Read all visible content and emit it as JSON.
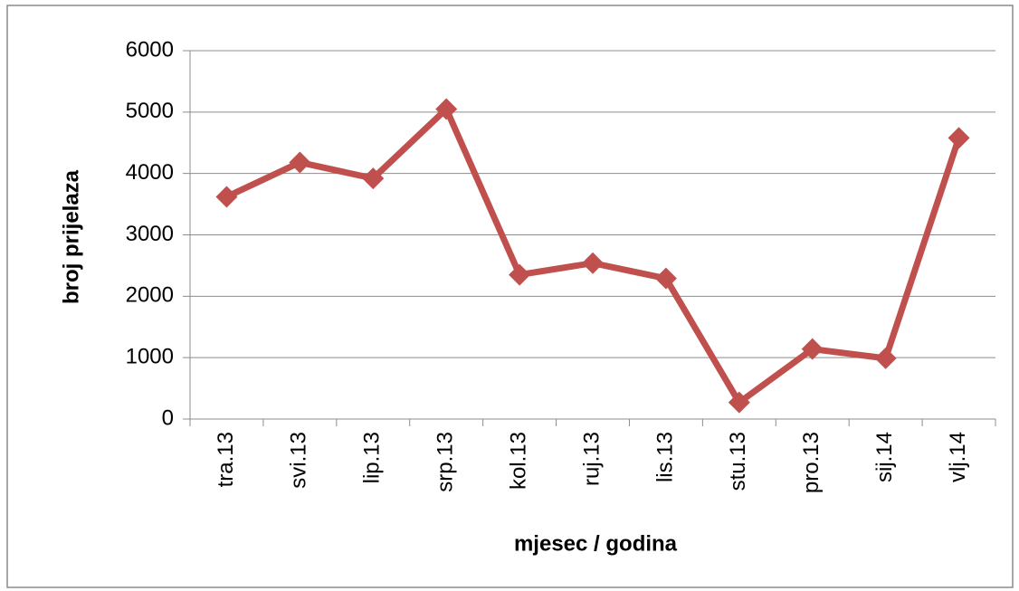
{
  "chart_data": {
    "type": "line",
    "x_label": "mjesec / godina",
    "y_label": "broj prijelaza",
    "categories": [
      "tra.13",
      "svi.13",
      "lip.13",
      "srp.13",
      "kol.13",
      "ruj.13",
      "lis.13",
      "stu.13",
      "pro.13",
      "sij.14",
      "vlj.14"
    ],
    "series": [
      {
        "name": "broj prijelaza",
        "color": "#c0504d",
        "values": [
          3620,
          4180,
          3920,
          5050,
          2350,
          2540,
          2290,
          270,
          1140,
          990,
          4580
        ]
      }
    ],
    "ylim": [
      0,
      6000
    ],
    "yticks": [
      0,
      1000,
      2000,
      3000,
      4000,
      5000,
      6000
    ],
    "grid": true
  }
}
